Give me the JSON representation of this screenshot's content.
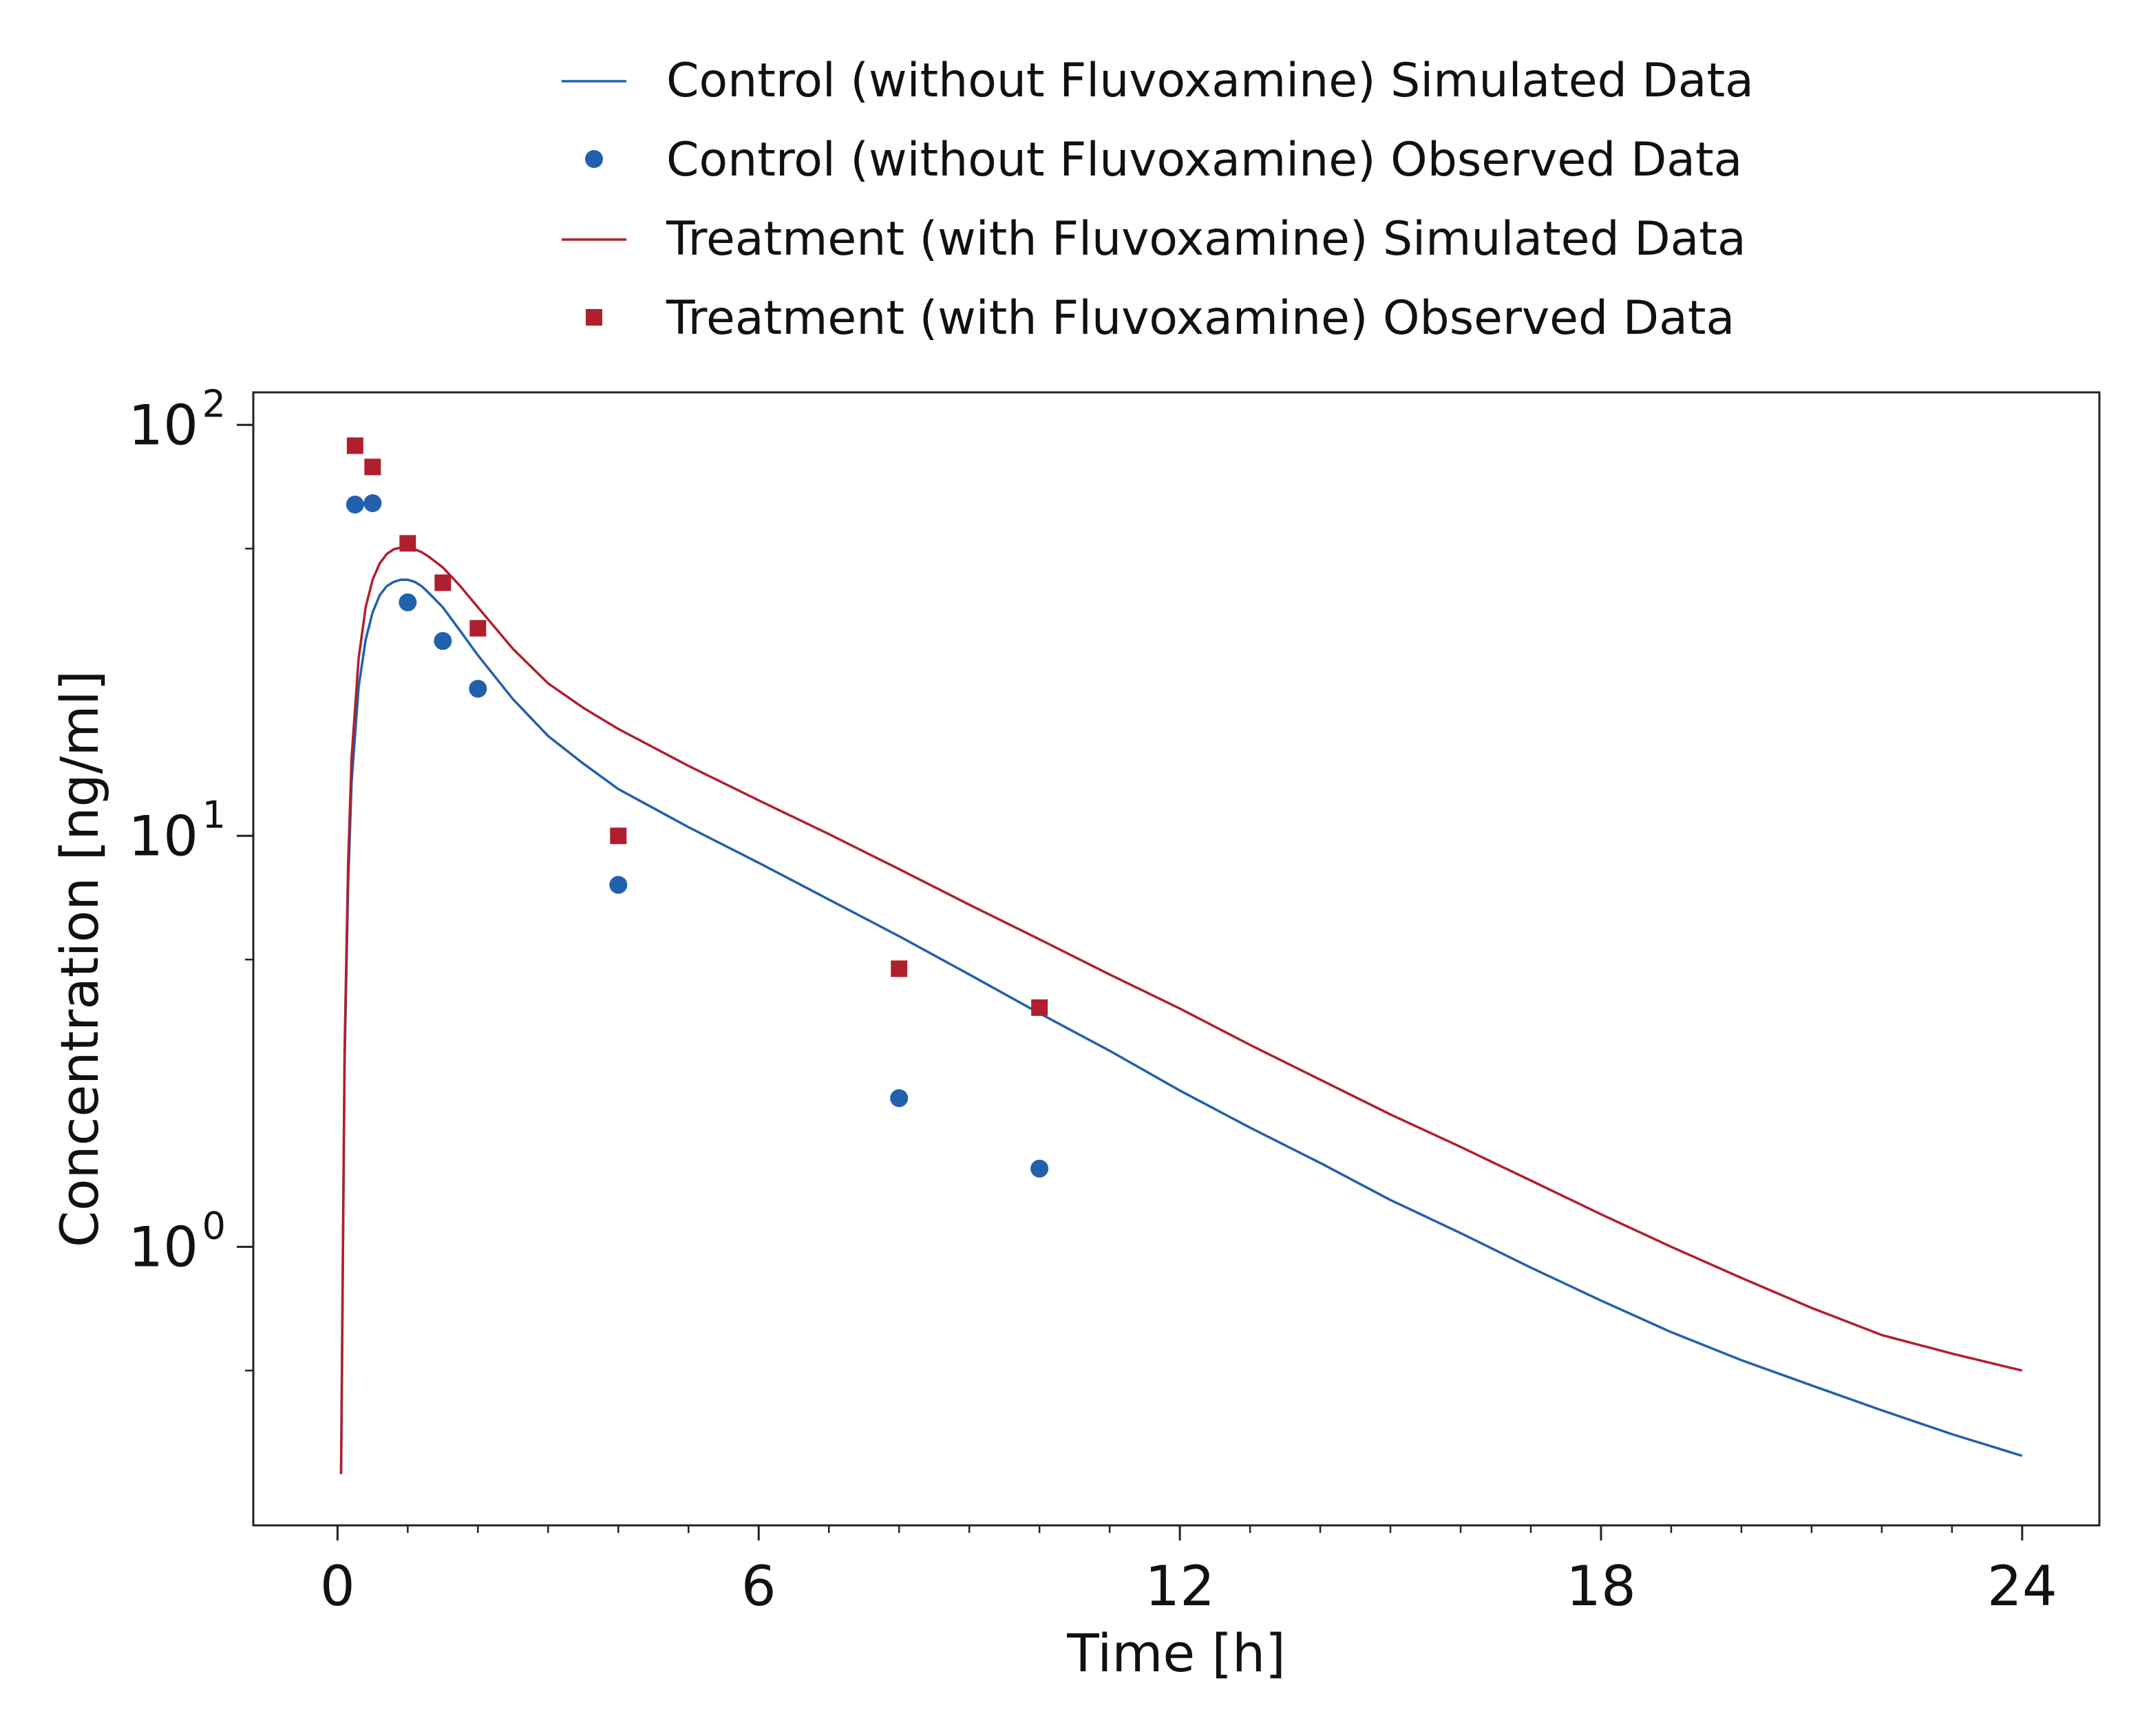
{
  "chart_data": {
    "type": "line",
    "xlabel": "Time [h]",
    "ylabel": "Concentration [ng/ml]",
    "xlim": [
      -1.2,
      25.1
    ],
    "ylim": [
      0.21,
      120
    ],
    "y_scale": "log",
    "grid": false,
    "legend_position": "top",
    "x_ticks": [
      {
        "value": 0,
        "label": "0"
      },
      {
        "value": 6,
        "label": "6"
      },
      {
        "value": 12,
        "label": "12"
      },
      {
        "value": 18,
        "label": "18"
      },
      {
        "value": 24,
        "label": "24"
      }
    ],
    "y_ticks": [
      {
        "value": 1,
        "base": "10",
        "exp": "0"
      },
      {
        "value": 10,
        "base": "10",
        "exp": "1"
      },
      {
        "value": 100,
        "base": "10",
        "exp": "2"
      }
    ],
    "series": [
      {
        "name": "Control (without Fluvoxamine) Simulated Data",
        "kind": "line",
        "color": "#2160ad",
        "x": [
          0.05,
          0.1,
          0.15,
          0.2,
          0.3,
          0.4,
          0.5,
          0.6,
          0.7,
          0.8,
          0.9,
          1.0,
          1.1,
          1.2,
          1.3,
          1.5,
          1.75,
          2.0,
          2.5,
          3.0,
          3.5,
          4.0,
          5.0,
          6.0,
          7.0,
          8.0,
          9.0,
          10.0,
          11.0,
          12.0,
          13.0,
          14.0,
          15.0,
          16.0,
          17.0,
          18.0,
          19.0,
          20.0,
          21.0,
          22.0,
          23.0,
          24.0
        ],
        "y": [
          0.28,
          2.8,
          7.5,
          13.5,
          23.0,
          30.0,
          35.0,
          38.5,
          40.5,
          41.5,
          42.0,
          42.0,
          41.5,
          40.5,
          39.0,
          36.0,
          31.5,
          27.5,
          21.5,
          17.5,
          15.0,
          13.0,
          10.5,
          8.6,
          7.0,
          5.7,
          4.6,
          3.7,
          3.0,
          2.4,
          1.95,
          1.6,
          1.3,
          1.08,
          0.89,
          0.74,
          0.62,
          0.53,
          0.46,
          0.4,
          0.35,
          0.31
        ]
      },
      {
        "name": "Control (without Fluvoxamine) Observed Data",
        "kind": "scatter",
        "marker": "circle",
        "color": "#2160ad",
        "x": [
          0.25,
          0.5,
          1.0,
          1.5,
          2.0,
          4.0,
          8.0,
          10.0
        ],
        "y": [
          64,
          64.5,
          37,
          29.8,
          22.8,
          7.6,
          2.3,
          1.55
        ]
      },
      {
        "name": "Treatment (with Fluvoxamine) Simulated Data",
        "kind": "line",
        "color": "#b01f2e",
        "x": [
          0.05,
          0.1,
          0.15,
          0.2,
          0.3,
          0.4,
          0.5,
          0.6,
          0.7,
          0.8,
          0.9,
          1.0,
          1.1,
          1.2,
          1.3,
          1.5,
          1.75,
          2.0,
          2.5,
          3.0,
          3.5,
          4.0,
          5.0,
          6.0,
          7.0,
          8.0,
          9.0,
          10.0,
          11.0,
          12.0,
          13.0,
          14.0,
          15.0,
          16.0,
          17.0,
          18.0,
          19.0,
          20.0,
          21.0,
          22.0,
          23.0,
          24.0
        ],
        "y": [
          0.28,
          3.0,
          8.5,
          15.5,
          27.0,
          36.0,
          42.0,
          46.0,
          48.5,
          49.8,
          50.3,
          50.3,
          49.8,
          49.0,
          47.8,
          45.0,
          40.5,
          36.0,
          28.5,
          23.5,
          20.5,
          18.2,
          14.8,
          12.2,
          10.1,
          8.3,
          6.8,
          5.6,
          4.6,
          3.8,
          3.1,
          2.55,
          2.1,
          1.75,
          1.45,
          1.2,
          1.0,
          0.84,
          0.71,
          0.61,
          0.55,
          0.5
        ]
      },
      {
        "name": "Treatment (with Fluvoxamine) Observed Data",
        "kind": "scatter",
        "marker": "square",
        "color": "#b01f2e",
        "x": [
          0.25,
          0.5,
          1.0,
          1.5,
          2.0,
          4.0,
          8.0,
          10.0
        ],
        "y": [
          89,
          79,
          51.5,
          41.3,
          32.0,
          10.0,
          4.75,
          3.82
        ]
      }
    ]
  }
}
